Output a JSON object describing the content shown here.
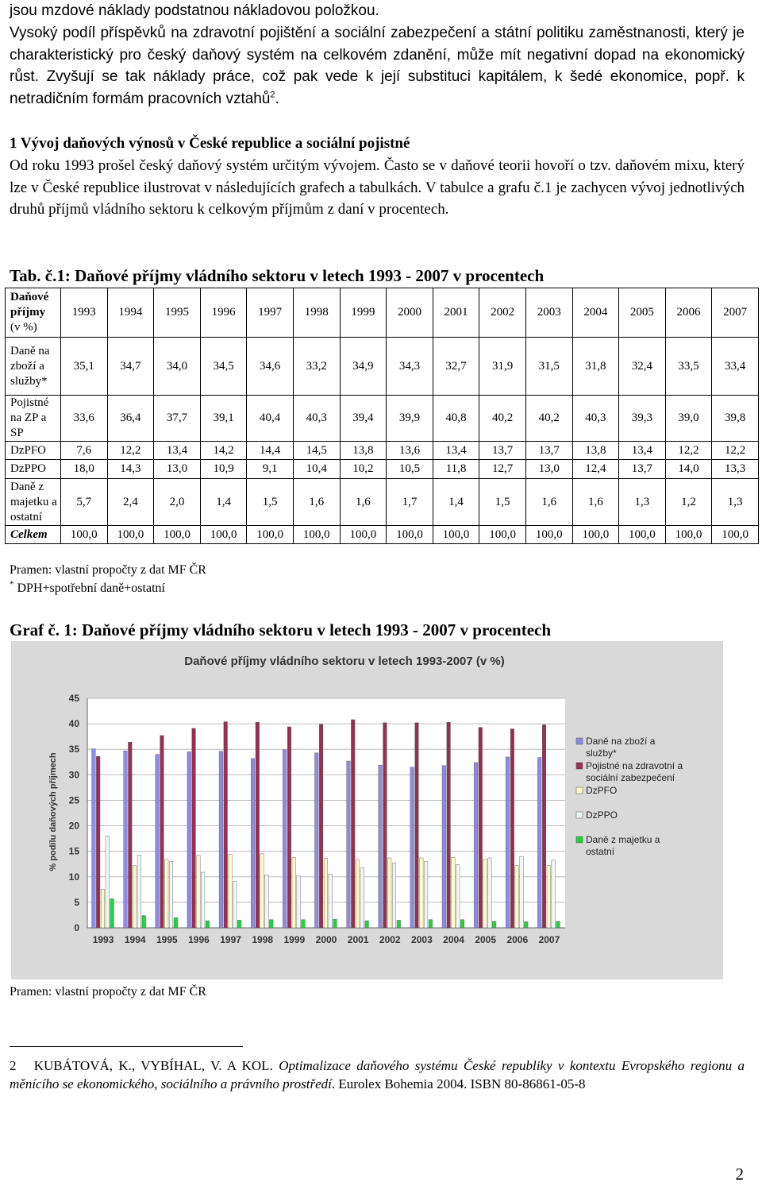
{
  "intro": {
    "line1": "jsou mzdové náklady podstatnou nákladovou položkou.",
    "para": "Vysoký podíl příspěvků na zdravotní pojištění a sociální zabezpečení a státní politiku zaměstnanosti, který je charakteristický pro český daňový systém na celkovém zdanění, může mít negativní dopad na ekonomický růst. Zvyšují se tak náklady práce, což pak vede k její substituci kapitálem, k šedé ekonomice, popř. k netradičním formám pracovních vztahů",
    "para_ref": "2",
    "para_end": "."
  },
  "section": {
    "heading": "1 Vývoj daňových výnosů v České republice a sociální pojistné",
    "body": "Od roku 1993 prošel český daňový systém určitým vývojem. Často se v daňové teorii hovoří o tzv. daňovém mixu, který lze v České republice ilustrovat v následujících grafech a tabulkách. V tabulce a grafu č.1 je zachycen vývoj jednotlivých druhů příjmů vládního sektoru k celkovým příjmům z daní v procentech."
  },
  "table": {
    "title": "Tab. č.1: Daňové příjmy vládního sektoru v letech 1993 - 2007 v procentech",
    "header_label_bold": "Daňové příjmy",
    "header_label_rest": "(v %)",
    "years": [
      "1993",
      "1994",
      "1995",
      "1996",
      "1997",
      "1998",
      "1999",
      "2000",
      "2001",
      "2002",
      "2003",
      "2004",
      "2005",
      "2006",
      "2007"
    ],
    "rows": [
      {
        "label": "Daně na zboží a služby*",
        "values": [
          "35,1",
          "34,7",
          "34,0",
          "34,5",
          "34,6",
          "33,2",
          "34,9",
          "34,3",
          "32,7",
          "31,9",
          "31,5",
          "31,8",
          "32,4",
          "33,5",
          "33,4"
        ]
      },
      {
        "label": "Pojistné na ZP a SP",
        "values": [
          "33,6",
          "36,4",
          "37,7",
          "39,1",
          "40,4",
          "40,3",
          "39,4",
          "39,9",
          "40,8",
          "40,2",
          "40,2",
          "40,3",
          "39,3",
          "39,0",
          "39,8"
        ]
      },
      {
        "label": "DzPFO",
        "values": [
          "7,6",
          "12,2",
          "13,4",
          "14,2",
          "14,4",
          "14,5",
          "13,8",
          "13,6",
          "13,4",
          "13,7",
          "13,7",
          "13,8",
          "13,4",
          "12,2",
          "12,2"
        ]
      },
      {
        "label": "DzPPO",
        "values": [
          "18,0",
          "14,3",
          "13,0",
          "10,9",
          "9,1",
          "10,4",
          "10,2",
          "10,5",
          "11,8",
          "12,7",
          "13,0",
          "12,4",
          "13,7",
          "14,0",
          "13,3"
        ]
      },
      {
        "label": "Daně z majetku a ostatní",
        "values": [
          "5,7",
          "2,4",
          "2,0",
          "1,4",
          "1,5",
          "1,6",
          "1,6",
          "1,7",
          "1,4",
          "1,5",
          "1,6",
          "1,6",
          "1,3",
          "1,2",
          "1,3"
        ]
      },
      {
        "label": "Celkem",
        "values": [
          "100,0",
          "100,0",
          "100,0",
          "100,0",
          "100,0",
          "100,0",
          "100,0",
          "100,0",
          "100,0",
          "100,0",
          "100,0",
          "100,0",
          "100,0",
          "100,0",
          "100,0"
        ]
      }
    ],
    "source": "Pramen: vlastní propočty z dat MF ČR",
    "note_mark": "*",
    "note": " DPH+spotřební daně+ostatní"
  },
  "graph": {
    "title": "Graf č. 1: Daňové příjmy vládního sektoru v letech 1993 - 2007 v procentech",
    "source": "Pramen: vlastní propočty z dat MF ČR"
  },
  "chart_data": {
    "type": "bar",
    "title": "Daňové příjmy vládního sektoru v letech 1993-2007 (v %)",
    "ylabel": "% podílu daňových příjmech",
    "xlabel": "",
    "ylim": [
      0,
      45
    ],
    "yticks": [
      "0",
      "5",
      "10",
      "15",
      "20",
      "25",
      "30",
      "35",
      "40",
      "45"
    ],
    "grid": true,
    "legend_position": "right",
    "categories": [
      "1993",
      "1994",
      "1995",
      "1996",
      "1997",
      "1998",
      "1999",
      "2000",
      "2001",
      "2002",
      "2003",
      "2004",
      "2005",
      "2006",
      "2007"
    ],
    "series": [
      {
        "name": "Daně na zboží a služby*",
        "color": "#8c8ce6",
        "values": [
          35.1,
          34.7,
          34.0,
          34.5,
          34.6,
          33.2,
          34.9,
          34.3,
          32.7,
          31.9,
          31.5,
          31.8,
          32.4,
          33.5,
          33.4
        ]
      },
      {
        "name": "Pojistné na zdravotní a sociální zabezpečení",
        "color": "#9a2d52",
        "values": [
          33.6,
          36.4,
          37.7,
          39.1,
          40.4,
          40.3,
          39.4,
          39.9,
          40.8,
          40.2,
          40.2,
          40.3,
          39.3,
          39.0,
          39.8
        ]
      },
      {
        "name": "DzPFO",
        "color": "#fffbc8",
        "values": [
          7.6,
          12.2,
          13.4,
          14.2,
          14.4,
          14.5,
          13.8,
          13.6,
          13.4,
          13.7,
          13.7,
          13.8,
          13.4,
          12.2,
          12.2
        ]
      },
      {
        "name": "DzPPO",
        "color": "#eef6f6",
        "values": [
          18.0,
          14.3,
          13.0,
          10.9,
          9.1,
          10.4,
          10.2,
          10.5,
          11.8,
          12.7,
          13.0,
          12.4,
          13.7,
          14.0,
          13.3
        ]
      },
      {
        "name": "Daně z majetku a ostatní",
        "color": "#1fd33c",
        "values": [
          5.7,
          2.4,
          2.0,
          1.4,
          1.5,
          1.6,
          1.6,
          1.7,
          1.4,
          1.5,
          1.6,
          1.6,
          1.3,
          1.2,
          1.3
        ]
      }
    ]
  },
  "footnote": {
    "number": "2",
    "authors": "KUBÁTOVÁ, K., VYBÍHAL, V. A KOL. ",
    "title": "Optimalizace daňového systému České republiky v kontextu Evropského regionu a měnícího se ekonomického, sociálního a právního prostředí",
    "rest": ". Eurolex Bohemia 2004. ISBN 80-86861-05-8"
  },
  "page_number": "2"
}
